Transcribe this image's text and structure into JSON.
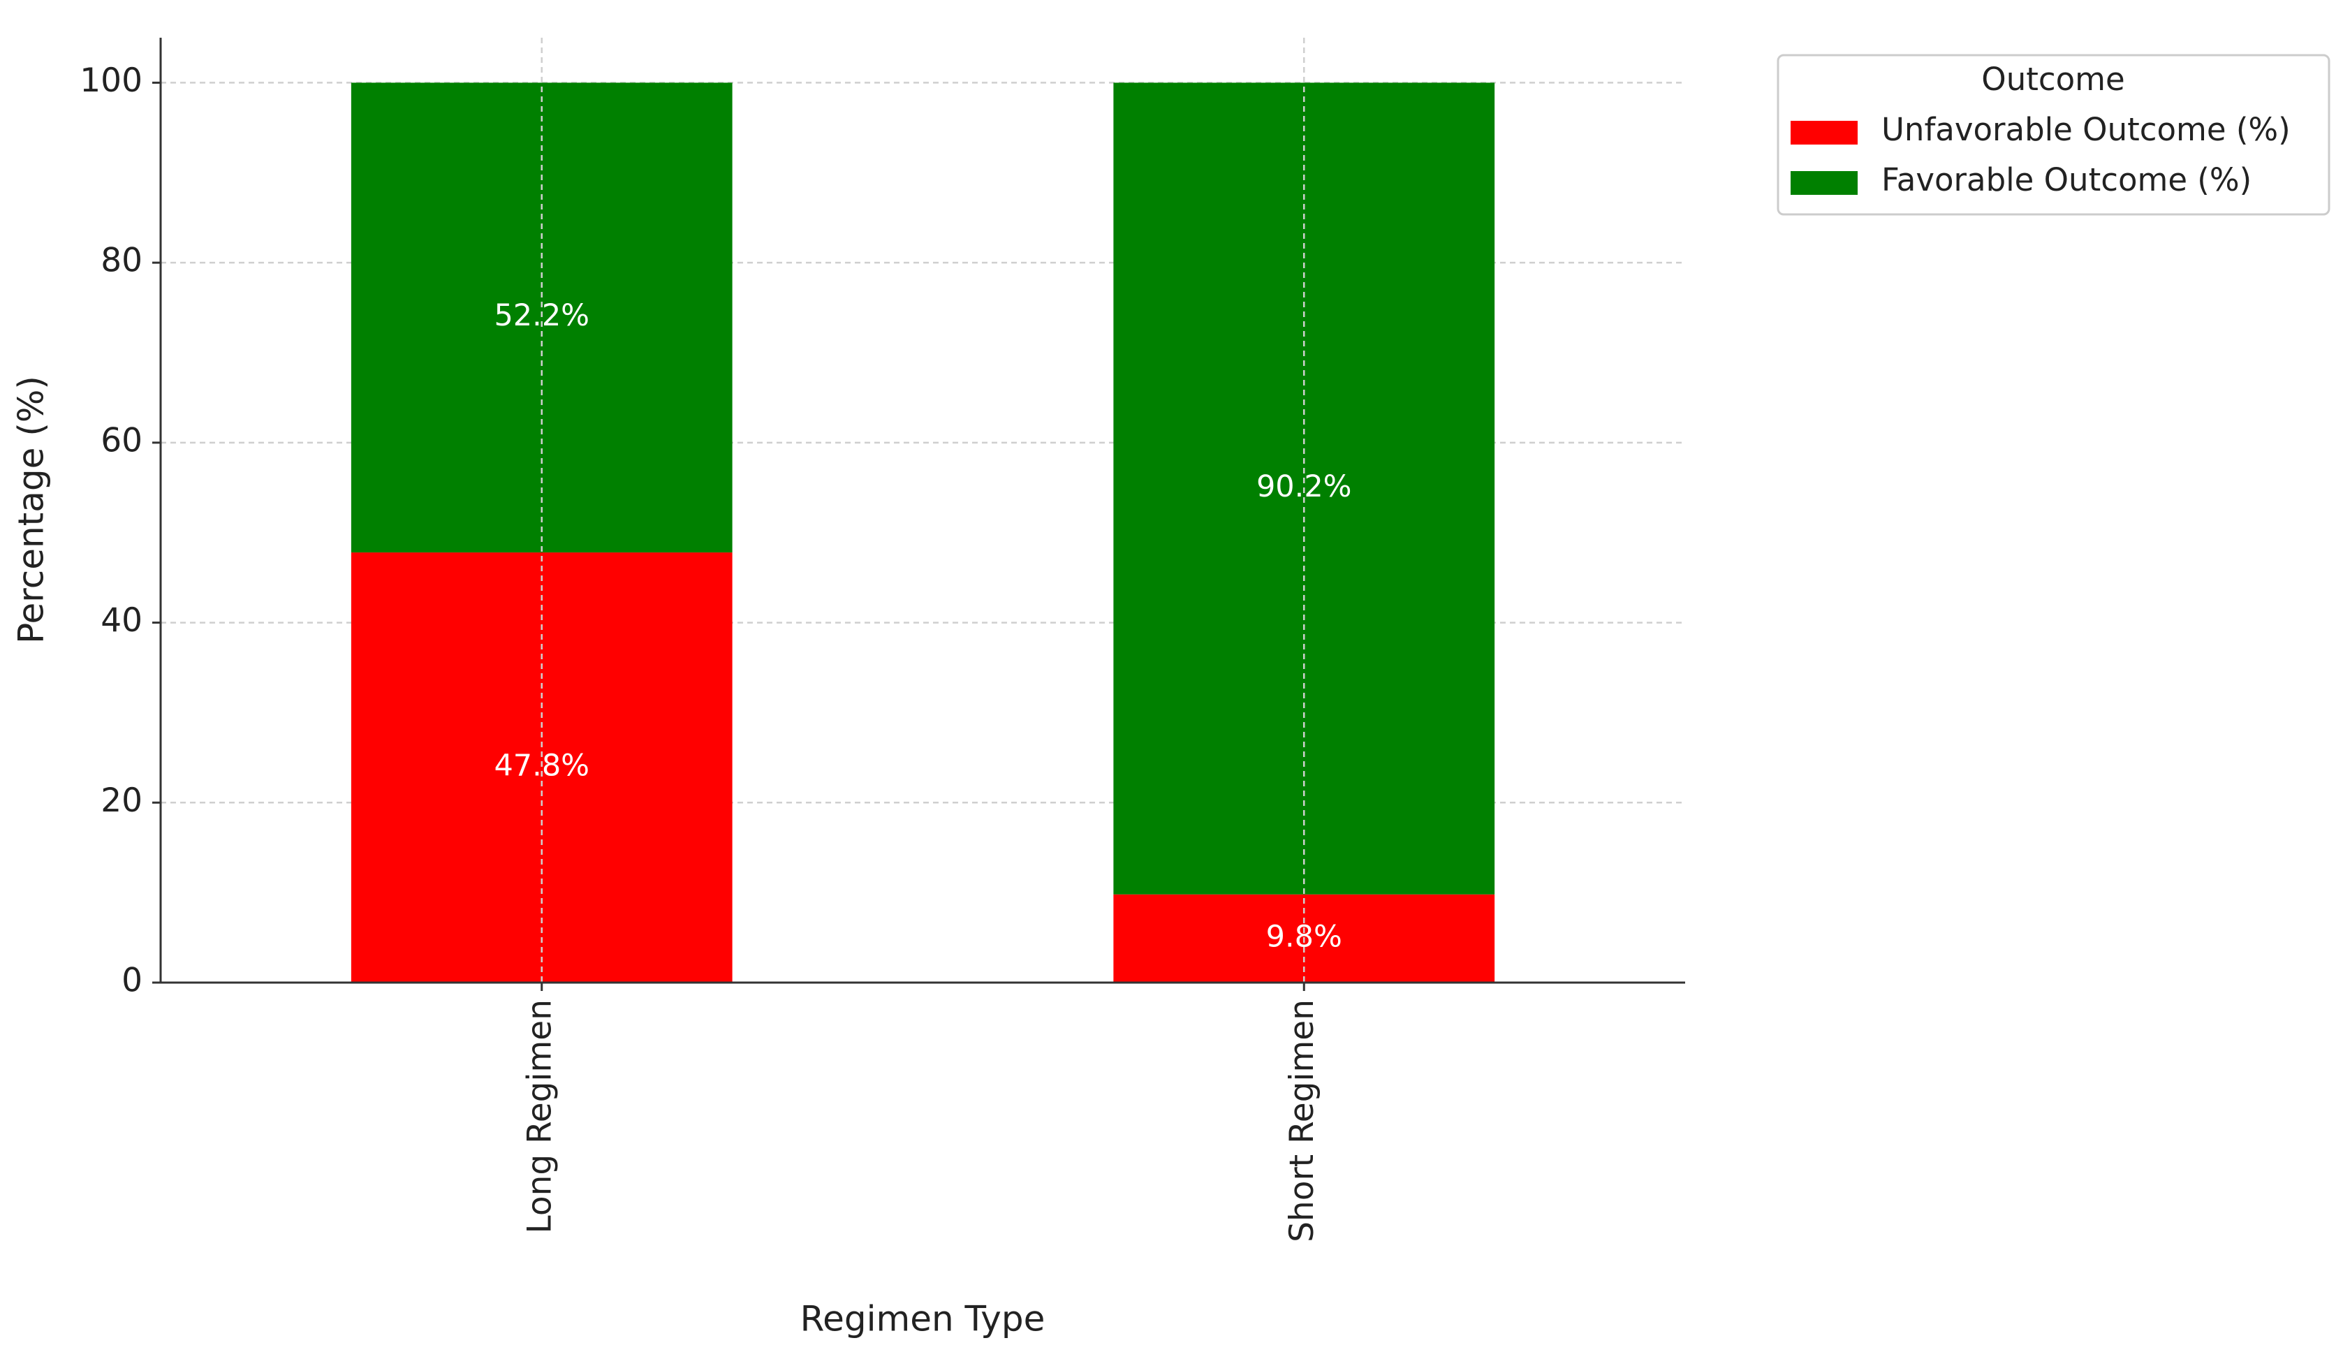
{
  "chart_data": {
    "type": "stacked_bar",
    "x_label": "Regimen Type",
    "y_label": "Percentage (%)",
    "categories": [
      "Long Regimen",
      "Short Regimen"
    ],
    "series": [
      {
        "name": "Unfavorable Outcome (%)",
        "color": "#ff0000",
        "values": [
          47.8,
          9.8
        ],
        "value_labels": [
          "47.8%",
          "9.8%"
        ]
      },
      {
        "name": "Favorable Outcome (%)",
        "color": "#008000",
        "values": [
          52.2,
          90.2
        ],
        "value_labels": [
          "52.2%",
          "90.2%"
        ]
      }
    ],
    "ylim": [
      0,
      105
    ],
    "yticks": [
      0,
      20,
      40,
      60,
      80,
      100
    ],
    "grid": true,
    "legend_title": "Outcome",
    "legend": "outside upper right"
  }
}
